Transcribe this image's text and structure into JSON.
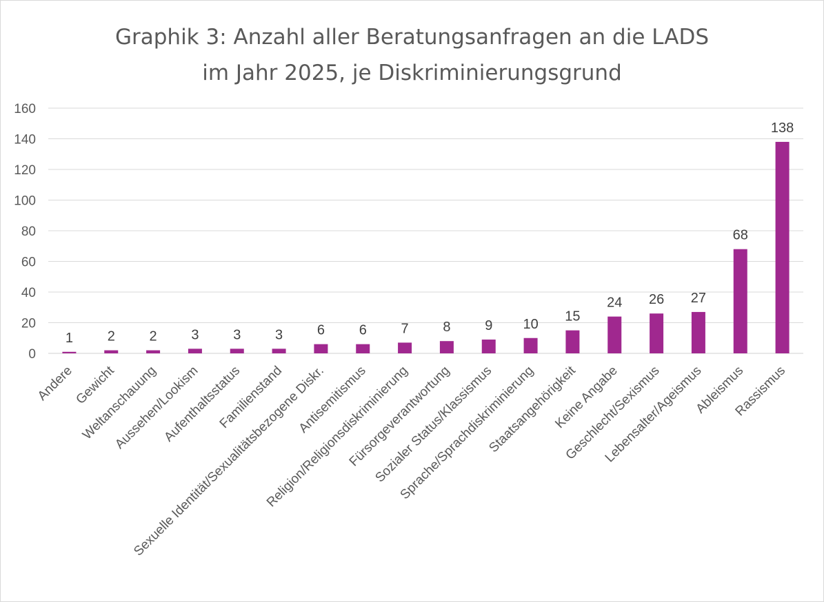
{
  "chart_data": {
    "type": "bar",
    "title_lines": [
      "Graphik 3: Anzahl aller Beratungsanfragen an die LADS",
      "im Jahr 2025, je Diskriminierungsgrund"
    ],
    "xlabel": "",
    "ylabel": "",
    "ylim": [
      0,
      160
    ],
    "yticks": [
      0,
      20,
      40,
      60,
      80,
      100,
      120,
      140,
      160
    ],
    "grid": true,
    "legend": "none",
    "bar_color": "#a0288f",
    "categories": [
      "Andere",
      "Gewicht",
      "Weltanschauung",
      "Aussehen/Lookism",
      "Aufenthaltsstatus",
      "Familienstand",
      "Sexuelle Identität/Sexualitätsbezogene Diskr.",
      "Antisemitismus",
      "Religion/Religionsdiskriminierung",
      "Fürsorgeverantwortung",
      "Sozialer Status/Klassismus",
      "Sprache/Sprachdiskriminierung",
      "Staatsangehörigkeit",
      "Keine Angabe",
      "Geschlecht/Sexismus",
      "Lebensalter/Ageismus",
      "Ableismus",
      "Rassismus"
    ],
    "values": [
      1,
      2,
      2,
      3,
      3,
      3,
      6,
      6,
      7,
      8,
      9,
      10,
      15,
      24,
      26,
      27,
      68,
      138
    ]
  }
}
